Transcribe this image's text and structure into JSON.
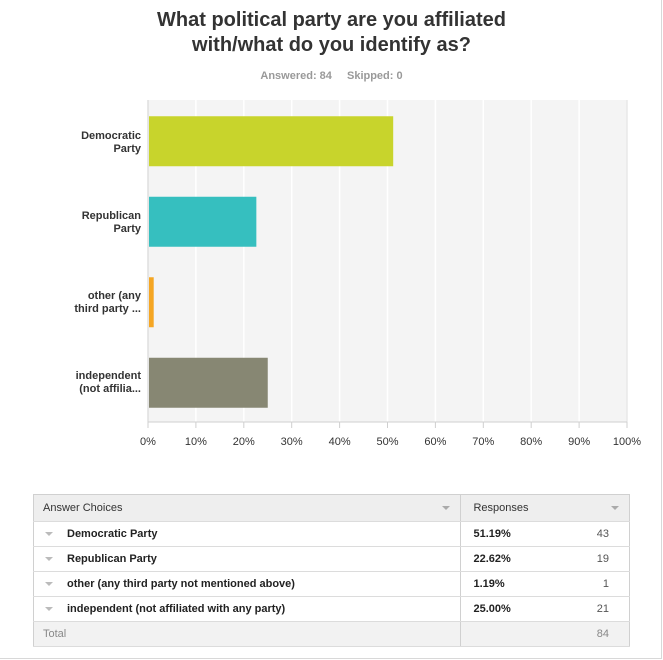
{
  "chart_data": {
    "type": "bar",
    "orientation": "horizontal",
    "title_lines": [
      "What political party are you affiliated",
      "with/what do you identify as?"
    ],
    "categories": [
      [
        "Democratic",
        "Party"
      ],
      [
        "Republican",
        "Party"
      ],
      [
        "other (any",
        "third party ..."
      ],
      [
        "independent",
        "(not affilia..."
      ]
    ],
    "values": [
      51.19,
      22.62,
      1.19,
      25.0
    ],
    "colors": [
      "#c8d42c",
      "#36bfbf",
      "#f5a623",
      "#878773"
    ],
    "xlim": [
      0,
      100
    ],
    "xticks": [
      "0%",
      "10%",
      "20%",
      "30%",
      "40%",
      "50%",
      "60%",
      "70%",
      "80%",
      "90%",
      "100%"
    ],
    "grid": true
  },
  "stats": {
    "answered": "Answered: 84",
    "skipped": "Skipped: 0"
  },
  "table": {
    "headers": {
      "choices": "Answer Choices",
      "responses": "Responses"
    },
    "rows": [
      {
        "choice": "Democratic Party",
        "percent": "51.19%",
        "count": "43"
      },
      {
        "choice": "Republican Party",
        "percent": "22.62%",
        "count": "19"
      },
      {
        "choice": "other (any third party not mentioned above)",
        "percent": "1.19%",
        "count": "1"
      },
      {
        "choice": "independent (not affiliated with any party)",
        "percent": "25.00%",
        "count": "21"
      }
    ],
    "total_label": "Total",
    "total_count": "84"
  }
}
